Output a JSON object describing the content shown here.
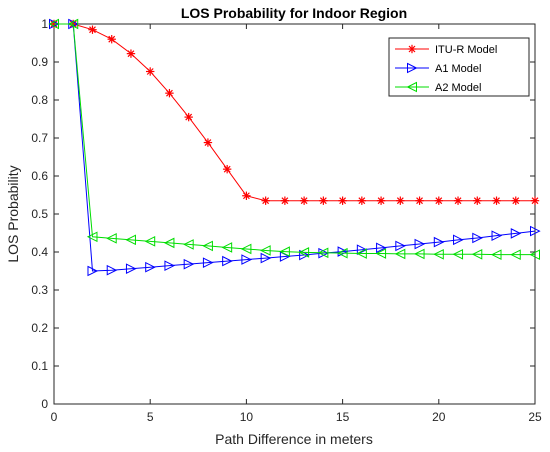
{
  "chart_data": {
    "type": "line",
    "title": "LOS Probability for Indoor Region",
    "xlabel": "Path Difference in meters",
    "ylabel": "LOS Probability",
    "xlim": [
      0,
      25
    ],
    "ylim": [
      0,
      1
    ],
    "xticks": [
      0,
      5,
      10,
      15,
      20,
      25
    ],
    "yticks": [
      0,
      0.1,
      0.2,
      0.3,
      0.4,
      0.5,
      0.6,
      0.7,
      0.8,
      0.9,
      1
    ],
    "grid": false,
    "legend_position": "top-right",
    "x": [
      0,
      1,
      2,
      3,
      4,
      5,
      6,
      7,
      8,
      9,
      10,
      11,
      12,
      13,
      14,
      15,
      16,
      17,
      18,
      19,
      20,
      21,
      22,
      23,
      24,
      25
    ],
    "series": [
      {
        "name": "ITU-R Model",
        "color": "#ff0000",
        "marker": "asterisk",
        "values": [
          1.0,
          1.0,
          0.985,
          0.96,
          0.922,
          0.875,
          0.818,
          0.755,
          0.688,
          0.618,
          0.548,
          0.535,
          0.535,
          0.535,
          0.535,
          0.535,
          0.535,
          0.535,
          0.535,
          0.535,
          0.535,
          0.535,
          0.535,
          0.535,
          0.535,
          0.535
        ]
      },
      {
        "name": "A1 Model",
        "color": "#0000ff",
        "marker": "triangle-right",
        "values": [
          1.0,
          1.0,
          0.35,
          0.352,
          0.356,
          0.36,
          0.364,
          0.368,
          0.372,
          0.376,
          0.38,
          0.384,
          0.388,
          0.392,
          0.397,
          0.401,
          0.406,
          0.411,
          0.416,
          0.421,
          0.426,
          0.432,
          0.437,
          0.443,
          0.449,
          0.455
        ]
      },
      {
        "name": "A2 Model",
        "color": "#00dd00",
        "marker": "triangle-left",
        "values": [
          1.0,
          1.0,
          0.44,
          0.436,
          0.432,
          0.428,
          0.424,
          0.42,
          0.416,
          0.412,
          0.408,
          0.404,
          0.401,
          0.399,
          0.398,
          0.397,
          0.396,
          0.396,
          0.395,
          0.395,
          0.394,
          0.394,
          0.394,
          0.393,
          0.393,
          0.393
        ]
      }
    ]
  }
}
